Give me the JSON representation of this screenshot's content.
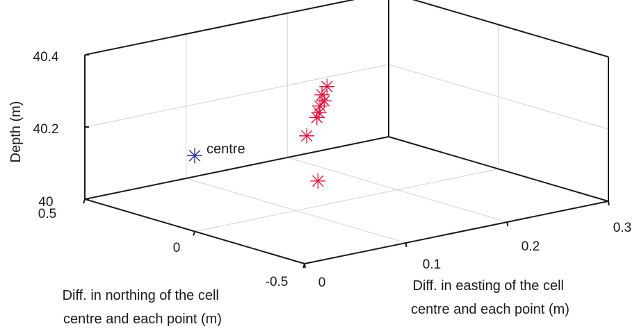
{
  "chart_data": {
    "type": "scatter3d",
    "title": "",
    "xlabel": "Diff. in easting of the cell centre and each point (m)",
    "ylabel": "Diff. in northing of the cell centre and each point (m)",
    "zlabel": "Depth (m)",
    "xlim": [
      0,
      0.3
    ],
    "ylim": [
      -0.5,
      0.5
    ],
    "zlim": [
      40,
      40.4
    ],
    "x_ticks": [
      "0",
      "0.1",
      "0.2",
      "0.3"
    ],
    "y_ticks": [
      "-0.5",
      "0",
      "0.5"
    ],
    "z_ticks": [
      "40",
      "40.2",
      "40.4"
    ],
    "grid": true,
    "marker": "asterisk",
    "series": [
      {
        "name": "",
        "color": "#2b2f8f",
        "points": [
          {
            "x": 0,
            "y": 0,
            "z": 40.21
          }
        ]
      },
      {
        "name": "",
        "color": "#e0143c",
        "points": [
          {
            "x": 0.135,
            "y": 0.02,
            "z": 40.32
          },
          {
            "x": 0.13,
            "y": 0.02,
            "z": 40.3
          },
          {
            "x": 0.13,
            "y": 0.01,
            "z": 40.285
          },
          {
            "x": 0.128,
            "y": 0.02,
            "z": 40.27
          },
          {
            "x": 0.125,
            "y": 0.01,
            "z": 40.255
          },
          {
            "x": 0.125,
            "y": 0.02,
            "z": 40.24
          },
          {
            "x": 0.115,
            "y": 0.02,
            "z": 40.195
          },
          {
            "x": 0.1,
            "y": -0.1,
            "z": 40.1
          }
        ]
      }
    ],
    "annotations": [
      {
        "text": "centre",
        "x": 0,
        "y": 0,
        "z": 40.21
      }
    ]
  }
}
